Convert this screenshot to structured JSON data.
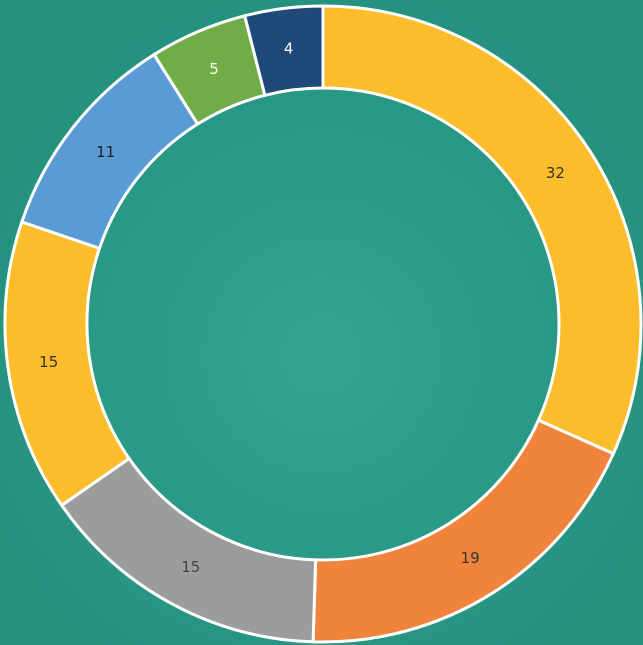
{
  "chart_data": {
    "type": "donut",
    "values": [
      32,
      19,
      15,
      15,
      11,
      5,
      4
    ],
    "colors": [
      "#fcbd2c",
      "#f0843c",
      "#9b9d9d",
      "#fcbd2c",
      "#5b9bd5",
      "#70ad47",
      "#1f4a78"
    ],
    "label_colors": [
      "#333333",
      "#333333",
      "#444444",
      "#333333",
      "#222222",
      "#ffffff",
      "#ffffff"
    ]
  }
}
